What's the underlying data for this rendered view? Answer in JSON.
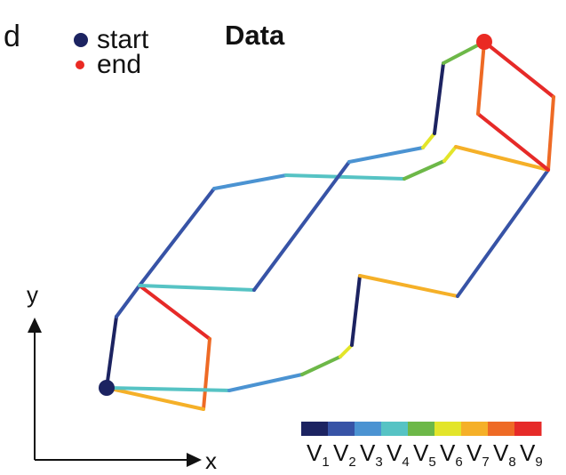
{
  "panel_letter": "d",
  "title": "Data",
  "legend": {
    "start_label": "start",
    "end_label": "end",
    "start_color": "#1c2361",
    "end_color": "#ea2a23"
  },
  "axes": {
    "x_label": "x",
    "y_label": "y"
  },
  "colorbar": {
    "labels": [
      {
        "main": "V",
        "sub": "1"
      },
      {
        "main": "V",
        "sub": "2"
      },
      {
        "main": "V",
        "sub": "3"
      },
      {
        "main": "V",
        "sub": "4"
      },
      {
        "main": "V",
        "sub": "5"
      },
      {
        "main": "V",
        "sub": "6"
      },
      {
        "main": "V",
        "sub": "7"
      },
      {
        "main": "V",
        "sub": "8"
      },
      {
        "main": "V",
        "sub": "9"
      }
    ],
    "colors": [
      "#1c2361",
      "#3753a6",
      "#4b93d2",
      "#56c3c4",
      "#6db848",
      "#e3e52a",
      "#f5b028",
      "#ee6a25",
      "#e62a28"
    ]
  }
}
